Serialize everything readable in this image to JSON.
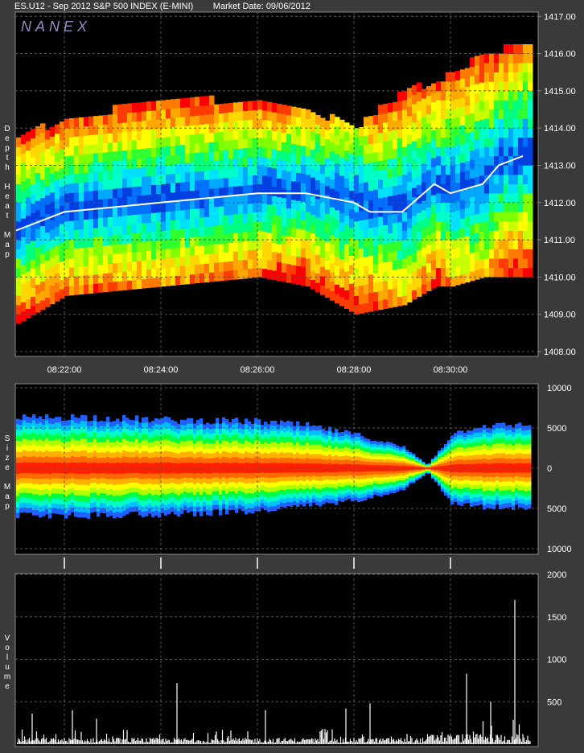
{
  "header": {
    "symbol": "ES.U12 - Sep 2012 S&P 500 INDEX (E-MINI)",
    "market_date": "Market Date: 09/06/2012",
    "watermark": "NANEX"
  },
  "panels": {
    "depth": {
      "label": [
        "D",
        "e",
        "p",
        "t",
        "h",
        "",
        "H",
        "e",
        "a",
        "t",
        "",
        "M",
        "a",
        "p"
      ]
    },
    "size": {
      "label": [
        "S",
        "i",
        "z",
        "e",
        "",
        "M",
        "a",
        "p"
      ]
    },
    "volume": {
      "label": [
        "V",
        "o",
        "l",
        "u",
        "m",
        "e"
      ]
    }
  },
  "chart_data": [
    {
      "type": "heatmap",
      "title": "Depth Heat Map",
      "x_ticks": [
        "08:22:00",
        "08:24:00",
        "08:26:00",
        "08:28:00",
        "08:30:00"
      ],
      "y_ticks": [
        "1417.00",
        "1416.00",
        "1415.00",
        "1414.00",
        "1413.00",
        "1412.00",
        "1411.00",
        "1410.00",
        "1409.00",
        "1408.00"
      ],
      "ylim": [
        1408.0,
        1417.0
      ],
      "grid": true,
      "colors": {
        "high": "#ff0000",
        "mid": "#ffff00",
        "low": "#00ff00",
        "lowest": "#0000ff",
        "trade": "#ffffff"
      },
      "trade_price": {
        "time": [
          "08:21:00",
          "08:22:00",
          "08:24:00",
          "08:26:00",
          "08:27:00",
          "08:28:00",
          "08:28:20",
          "08:29:00",
          "08:29:40",
          "08:30:00",
          "08:30:40",
          "08:31:00",
          "08:31:30"
        ],
        "price": [
          1411.25,
          1411.75,
          1412.0,
          1412.25,
          1412.25,
          1412.0,
          1411.75,
          1411.75,
          1412.5,
          1412.25,
          1412.5,
          1413.0,
          1413.25
        ]
      },
      "book": {
        "time": [
          "08:21:00",
          "08:22:00",
          "08:24:00",
          "08:26:00",
          "08:27:00",
          "08:28:00",
          "08:29:00",
          "08:29:40",
          "08:30:00",
          "08:30:40",
          "08:31:30"
        ],
        "top": [
          1413.75,
          1414.25,
          1414.75,
          1414.75,
          1414.5,
          1414.0,
          1415.0,
          1415.25,
          1415.5,
          1416.0,
          1416.25
        ],
        "bottom": [
          1408.75,
          1409.5,
          1409.75,
          1410.0,
          1409.75,
          1409.0,
          1409.25,
          1409.75,
          1409.75,
          1410.0,
          1410.0
        ]
      }
    },
    {
      "type": "area",
      "title": "Size Map",
      "y_ticks": [
        "10000",
        "5000",
        "0",
        "5000",
        "10000"
      ],
      "ylim": [
        -10000,
        10000
      ],
      "grid": true,
      "bands": [
        "#ff2000",
        "#ff6a00",
        "#ffb000",
        "#ffff00",
        "#b0ff00",
        "#00ff40",
        "#00ffc0",
        "#00c0ff",
        "#2060ff"
      ],
      "envelope": {
        "time": [
          "08:21:00",
          "08:22:00",
          "08:24:00",
          "08:26:00",
          "08:27:00",
          "08:28:00",
          "08:29:00",
          "08:29:30",
          "08:30:00",
          "08:30:30",
          "08:31:30"
        ],
        "ask": [
          6200,
          6400,
          6000,
          5800,
          5300,
          4200,
          2600,
          400,
          4200,
          5200,
          5400
        ],
        "bid": [
          5800,
          5900,
          5700,
          5300,
          4700,
          4000,
          2600,
          500,
          4200,
          4800,
          4900
        ]
      }
    },
    {
      "type": "bar",
      "title": "Volume",
      "y_ticks": [
        "2000",
        "1500",
        "1000",
        "500"
      ],
      "ylim": [
        0,
        2000
      ],
      "grid": true,
      "bar_color": "#ffffff",
      "spikes": [
        {
          "time": "08:21:20",
          "value": 360
        },
        {
          "time": "08:22:10",
          "value": 400
        },
        {
          "time": "08:22:40",
          "value": 300
        },
        {
          "time": "08:24:20",
          "value": 720
        },
        {
          "time": "08:26:10",
          "value": 400
        },
        {
          "time": "08:27:50",
          "value": 420
        },
        {
          "time": "08:28:20",
          "value": 480
        },
        {
          "time": "08:30:20",
          "value": 830
        },
        {
          "time": "08:30:50",
          "value": 500
        },
        {
          "time": "08:31:20",
          "value": 1700
        }
      ]
    }
  ]
}
